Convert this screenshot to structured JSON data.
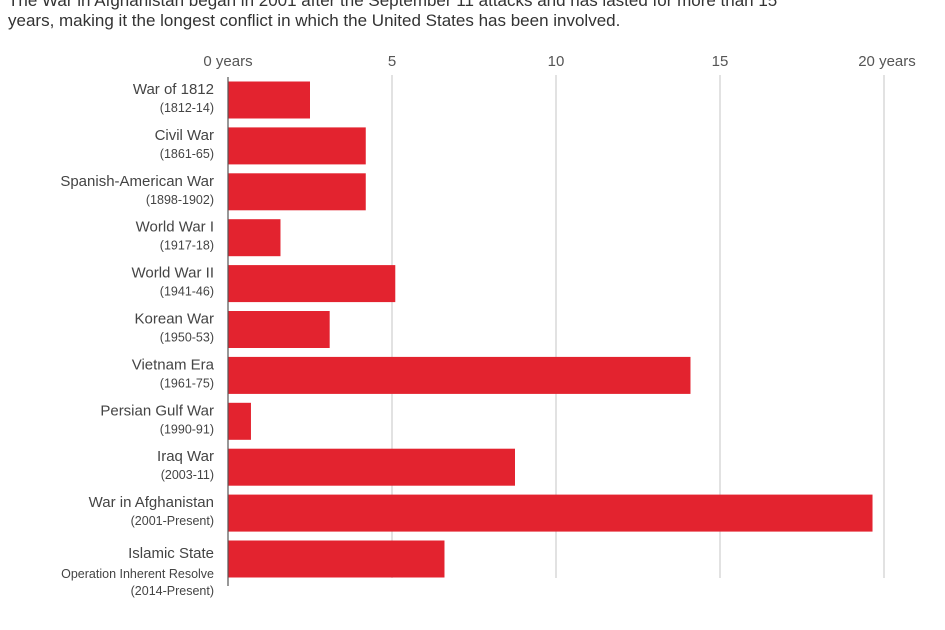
{
  "intro": {
    "line1": "The War in Afghanistan began in 2001 after the September 11 attacks and has lasted for more than 15",
    "line2": "years, making it the longest conflict in which the United States has been involved."
  },
  "colors": {
    "bar": "#e3232f",
    "grid": "#d8d8d8",
    "axis": "#555555"
  },
  "chart_data": {
    "type": "bar",
    "orientation": "horizontal",
    "title": "",
    "xlabel": "",
    "ylabel": "",
    "xlim": [
      0,
      20
    ],
    "grid": true,
    "ticks": [
      {
        "value": 0,
        "label": "0 years"
      },
      {
        "value": 5,
        "label": "5"
      },
      {
        "value": 10,
        "label": "10"
      },
      {
        "value": 15,
        "label": "15"
      },
      {
        "value": 20,
        "label": "20 years"
      }
    ],
    "categories": [
      {
        "name": "War of 1812",
        "sub": "(1812-14)",
        "value": 2.5
      },
      {
        "name": "Civil War",
        "sub": "(1861-65)",
        "value": 4.2
      },
      {
        "name": "Spanish-American War",
        "sub": "(1898-1902)",
        "value": 4.2
      },
      {
        "name": "World War I",
        "sub": "(1917-18)",
        "value": 1.6
      },
      {
        "name": "World War II",
        "sub": "(1941-46)",
        "value": 5.1
      },
      {
        "name": "Korean War",
        "sub": "(1950-53)",
        "value": 3.1
      },
      {
        "name": "Vietnam Era",
        "sub": "(1961-75)",
        "value": 14.1
      },
      {
        "name": "Persian Gulf War",
        "sub": "(1990-91)",
        "value": 0.7
      },
      {
        "name": "Iraq War",
        "sub": "(2003-11)",
        "value": 8.75
      },
      {
        "name": "War in Afghanistan",
        "sub": "(2001-Present)",
        "value": 19.65
      },
      {
        "name": "Islamic State",
        "name2": "Operation Inherent Resolve",
        "sub": "(2014-Present)",
        "value": 6.6
      }
    ]
  }
}
